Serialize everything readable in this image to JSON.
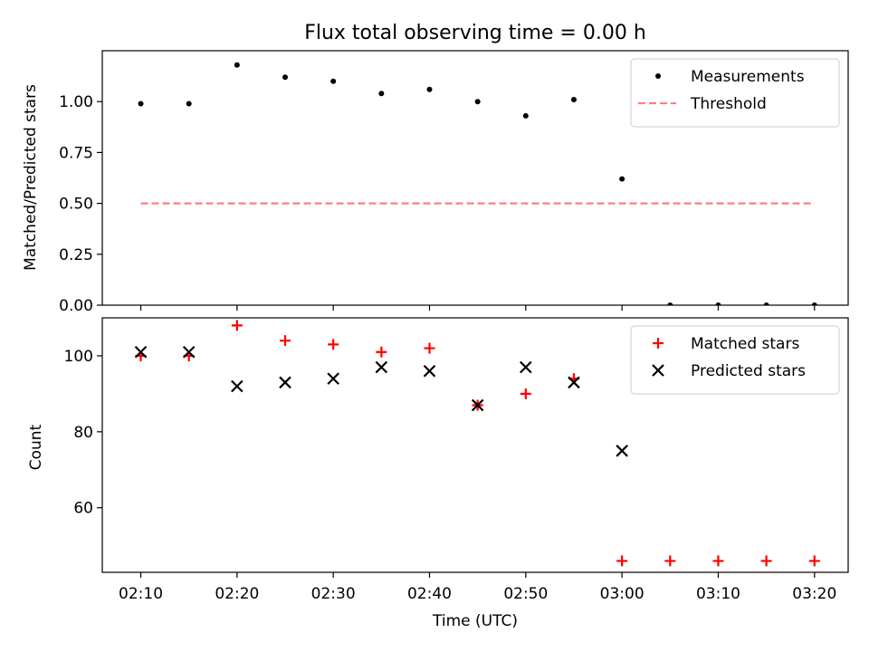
{
  "title": "Flux total observing time = 0.00 h",
  "chart_data": [
    {
      "type": "scatter",
      "ylabel": "Matched/Predicted stars",
      "xlim": [
        "02:06",
        "03:23.5"
      ],
      "ylim": [
        0,
        1.25
      ],
      "yticks": [
        0.0,
        0.25,
        0.5,
        0.75,
        1.0
      ],
      "ytick_labels": [
        "0.00",
        "0.25",
        "0.50",
        "0.75",
        "1.00"
      ],
      "legend_position": "top-right",
      "series": [
        {
          "name": "Measurements",
          "marker": "dot",
          "color": "#000000",
          "x": [
            "02:10",
            "02:15",
            "02:20",
            "02:25",
            "02:30",
            "02:35",
            "02:40",
            "02:45",
            "02:50",
            "02:55",
            "03:00",
            "03:05",
            "03:10",
            "03:15",
            "03:20"
          ],
          "y": [
            0.99,
            0.99,
            1.18,
            1.12,
            1.1,
            1.04,
            1.06,
            1.0,
            0.93,
            1.01,
            0.62,
            0.0,
            0.0,
            0.0,
            0.0
          ]
        },
        {
          "name": "Threshold",
          "marker": "dashed-line",
          "color": "#ff7f7f",
          "x": [
            "02:10",
            "03:20"
          ],
          "y": [
            0.5,
            0.5
          ]
        }
      ]
    },
    {
      "type": "scatter",
      "xlabel": "Time (UTC)",
      "ylabel": "Count",
      "xlim": [
        "02:06",
        "03:23.5"
      ],
      "ylim": [
        43,
        110
      ],
      "yticks": [
        60,
        80,
        100
      ],
      "ytick_labels": [
        "60",
        "80",
        "100"
      ],
      "xticks": [
        "02:10",
        "02:20",
        "02:30",
        "02:40",
        "02:50",
        "03:00",
        "03:10",
        "03:20"
      ],
      "xtick_labels": [
        "02:10",
        "02:20",
        "02:30",
        "02:40",
        "02:50",
        "03:00",
        "03:10",
        "03:20"
      ],
      "legend_position": "top-right",
      "series": [
        {
          "name": "Matched stars",
          "marker": "plus",
          "color": "#ff0000",
          "x": [
            "02:10",
            "02:15",
            "02:20",
            "02:25",
            "02:30",
            "02:35",
            "02:40",
            "02:45",
            "02:50",
            "02:55",
            "03:00",
            "03:05",
            "03:10",
            "03:15",
            "03:20"
          ],
          "y": [
            100,
            100,
            108,
            104,
            103,
            101,
            102,
            87,
            90,
            94,
            46,
            46,
            46,
            46,
            46
          ]
        },
        {
          "name": "Predicted stars",
          "marker": "x",
          "color": "#000000",
          "x": [
            "02:10",
            "02:15",
            "02:20",
            "02:25",
            "02:30",
            "02:35",
            "02:40",
            "02:45",
            "02:50",
            "02:55",
            "03:00"
          ],
          "y": [
            101,
            101,
            92,
            93,
            94,
            97,
            96,
            87,
            97,
            93,
            75
          ]
        }
      ]
    }
  ]
}
